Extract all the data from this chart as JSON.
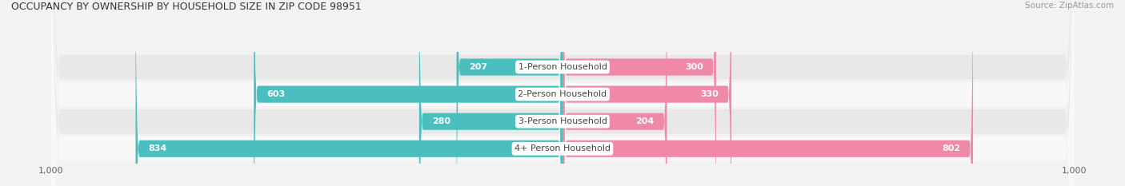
{
  "title": "OCCUPANCY BY OWNERSHIP BY HOUSEHOLD SIZE IN ZIP CODE 98951",
  "source": "Source: ZipAtlas.com",
  "categories": [
    "1-Person Household",
    "2-Person Household",
    "3-Person Household",
    "4+ Person Household"
  ],
  "owner_values": [
    207,
    603,
    280,
    834
  ],
  "renter_values": [
    300,
    330,
    204,
    802
  ],
  "owner_color": "#4bbfbf",
  "renter_color": "#f088a8",
  "bg_color": "#f2f2f2",
  "row_colors": [
    "#e8e8e8",
    "#f8f8f8",
    "#e8e8e8",
    "#f8f8f8"
  ],
  "xlim": 1000,
  "label_fontsize": 8,
  "title_fontsize": 9,
  "source_fontsize": 7.5,
  "value_fontsize": 8,
  "legend_fontsize": 8,
  "axis_label_color": "#666666",
  "title_color": "#333333",
  "source_color": "#999999",
  "dark_value_color": "#555555",
  "white_value_color": "#ffffff",
  "inside_threshold": 150
}
